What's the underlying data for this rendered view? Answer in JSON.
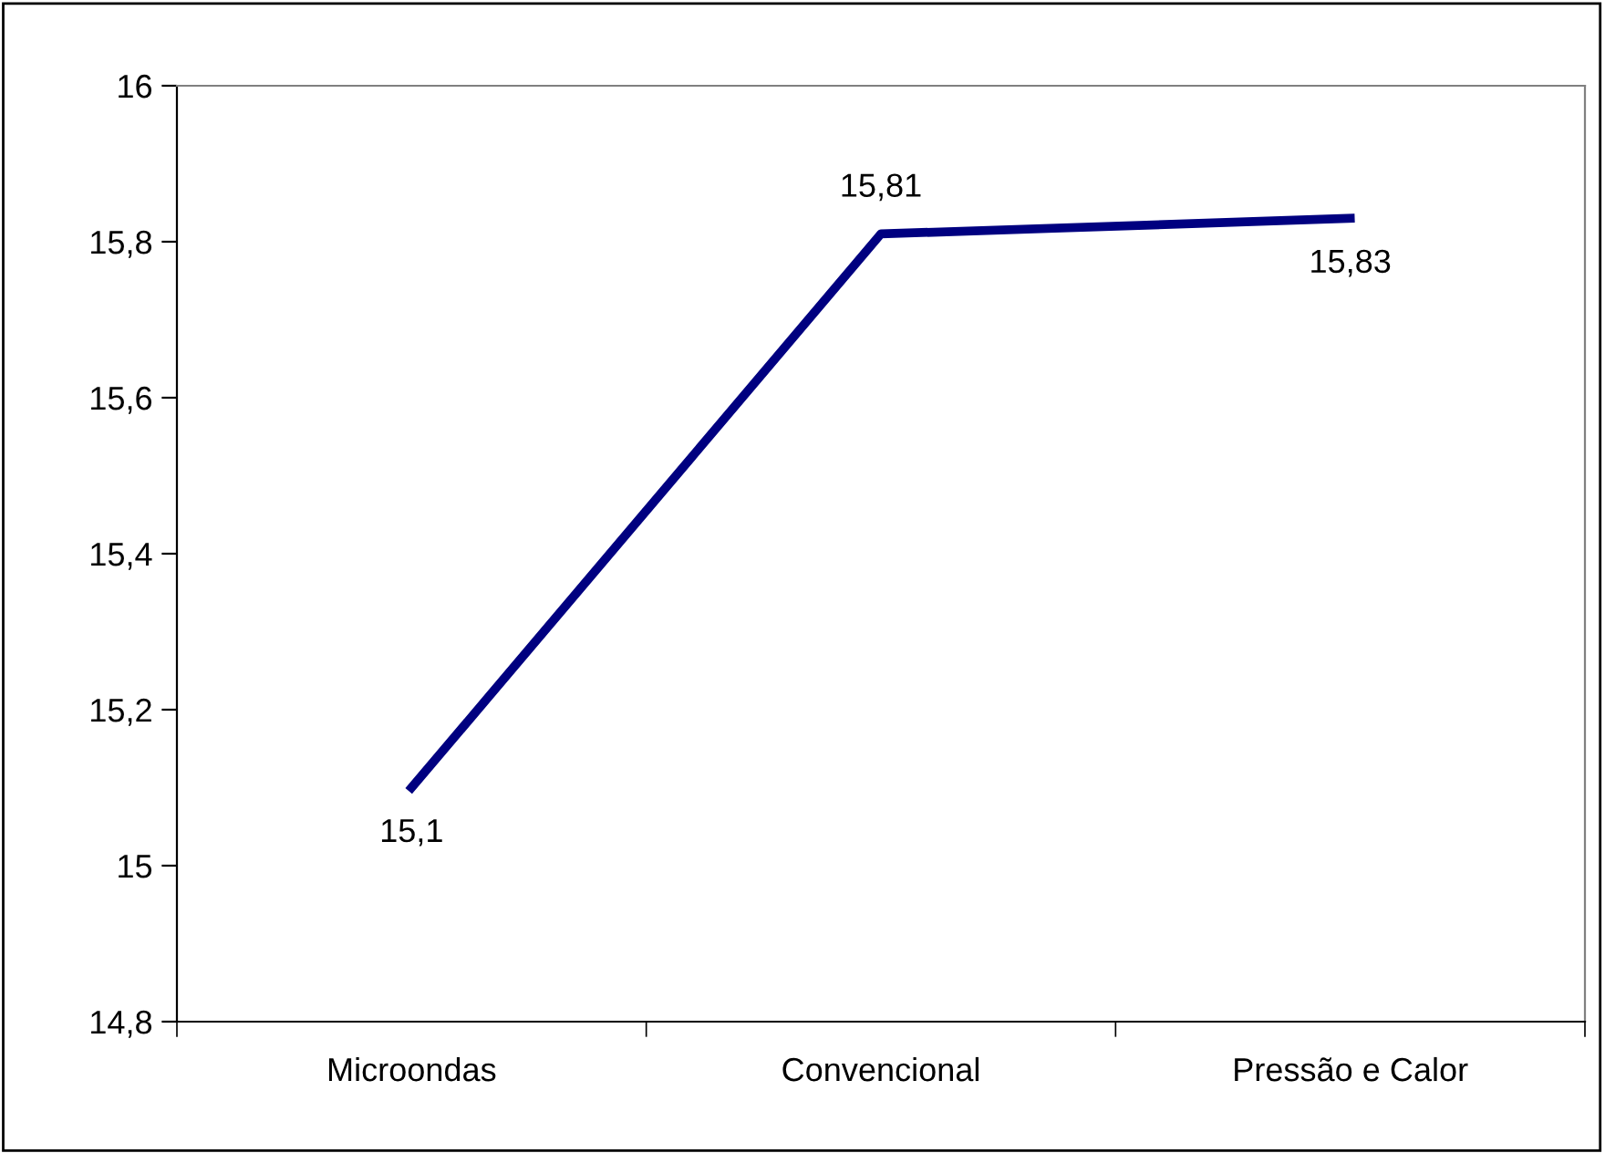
{
  "chart_data": {
    "type": "line",
    "categories": [
      "Microondas",
      "Convencional",
      "Pressão e Calor"
    ],
    "series": [
      {
        "color": "#000080",
        "values": [
          15.1,
          15.81,
          15.83
        ],
        "value_labels": [
          "15,1",
          "15,81",
          "15,83"
        ]
      }
    ],
    "ylim": [
      14.8,
      16
    ],
    "yticks": [
      {
        "value": 14.8,
        "label": "14,8"
      },
      {
        "value": 15,
        "label": "15"
      },
      {
        "value": 15.2,
        "label": "15,2"
      },
      {
        "value": 15.4,
        "label": "15,4"
      },
      {
        "value": 15.6,
        "label": "15,6"
      },
      {
        "value": 15.8,
        "label": "15,8"
      },
      {
        "value": 16,
        "label": "16"
      }
    ],
    "grid": false,
    "legend": false,
    "marker": "none",
    "line_style": "solid"
  }
}
